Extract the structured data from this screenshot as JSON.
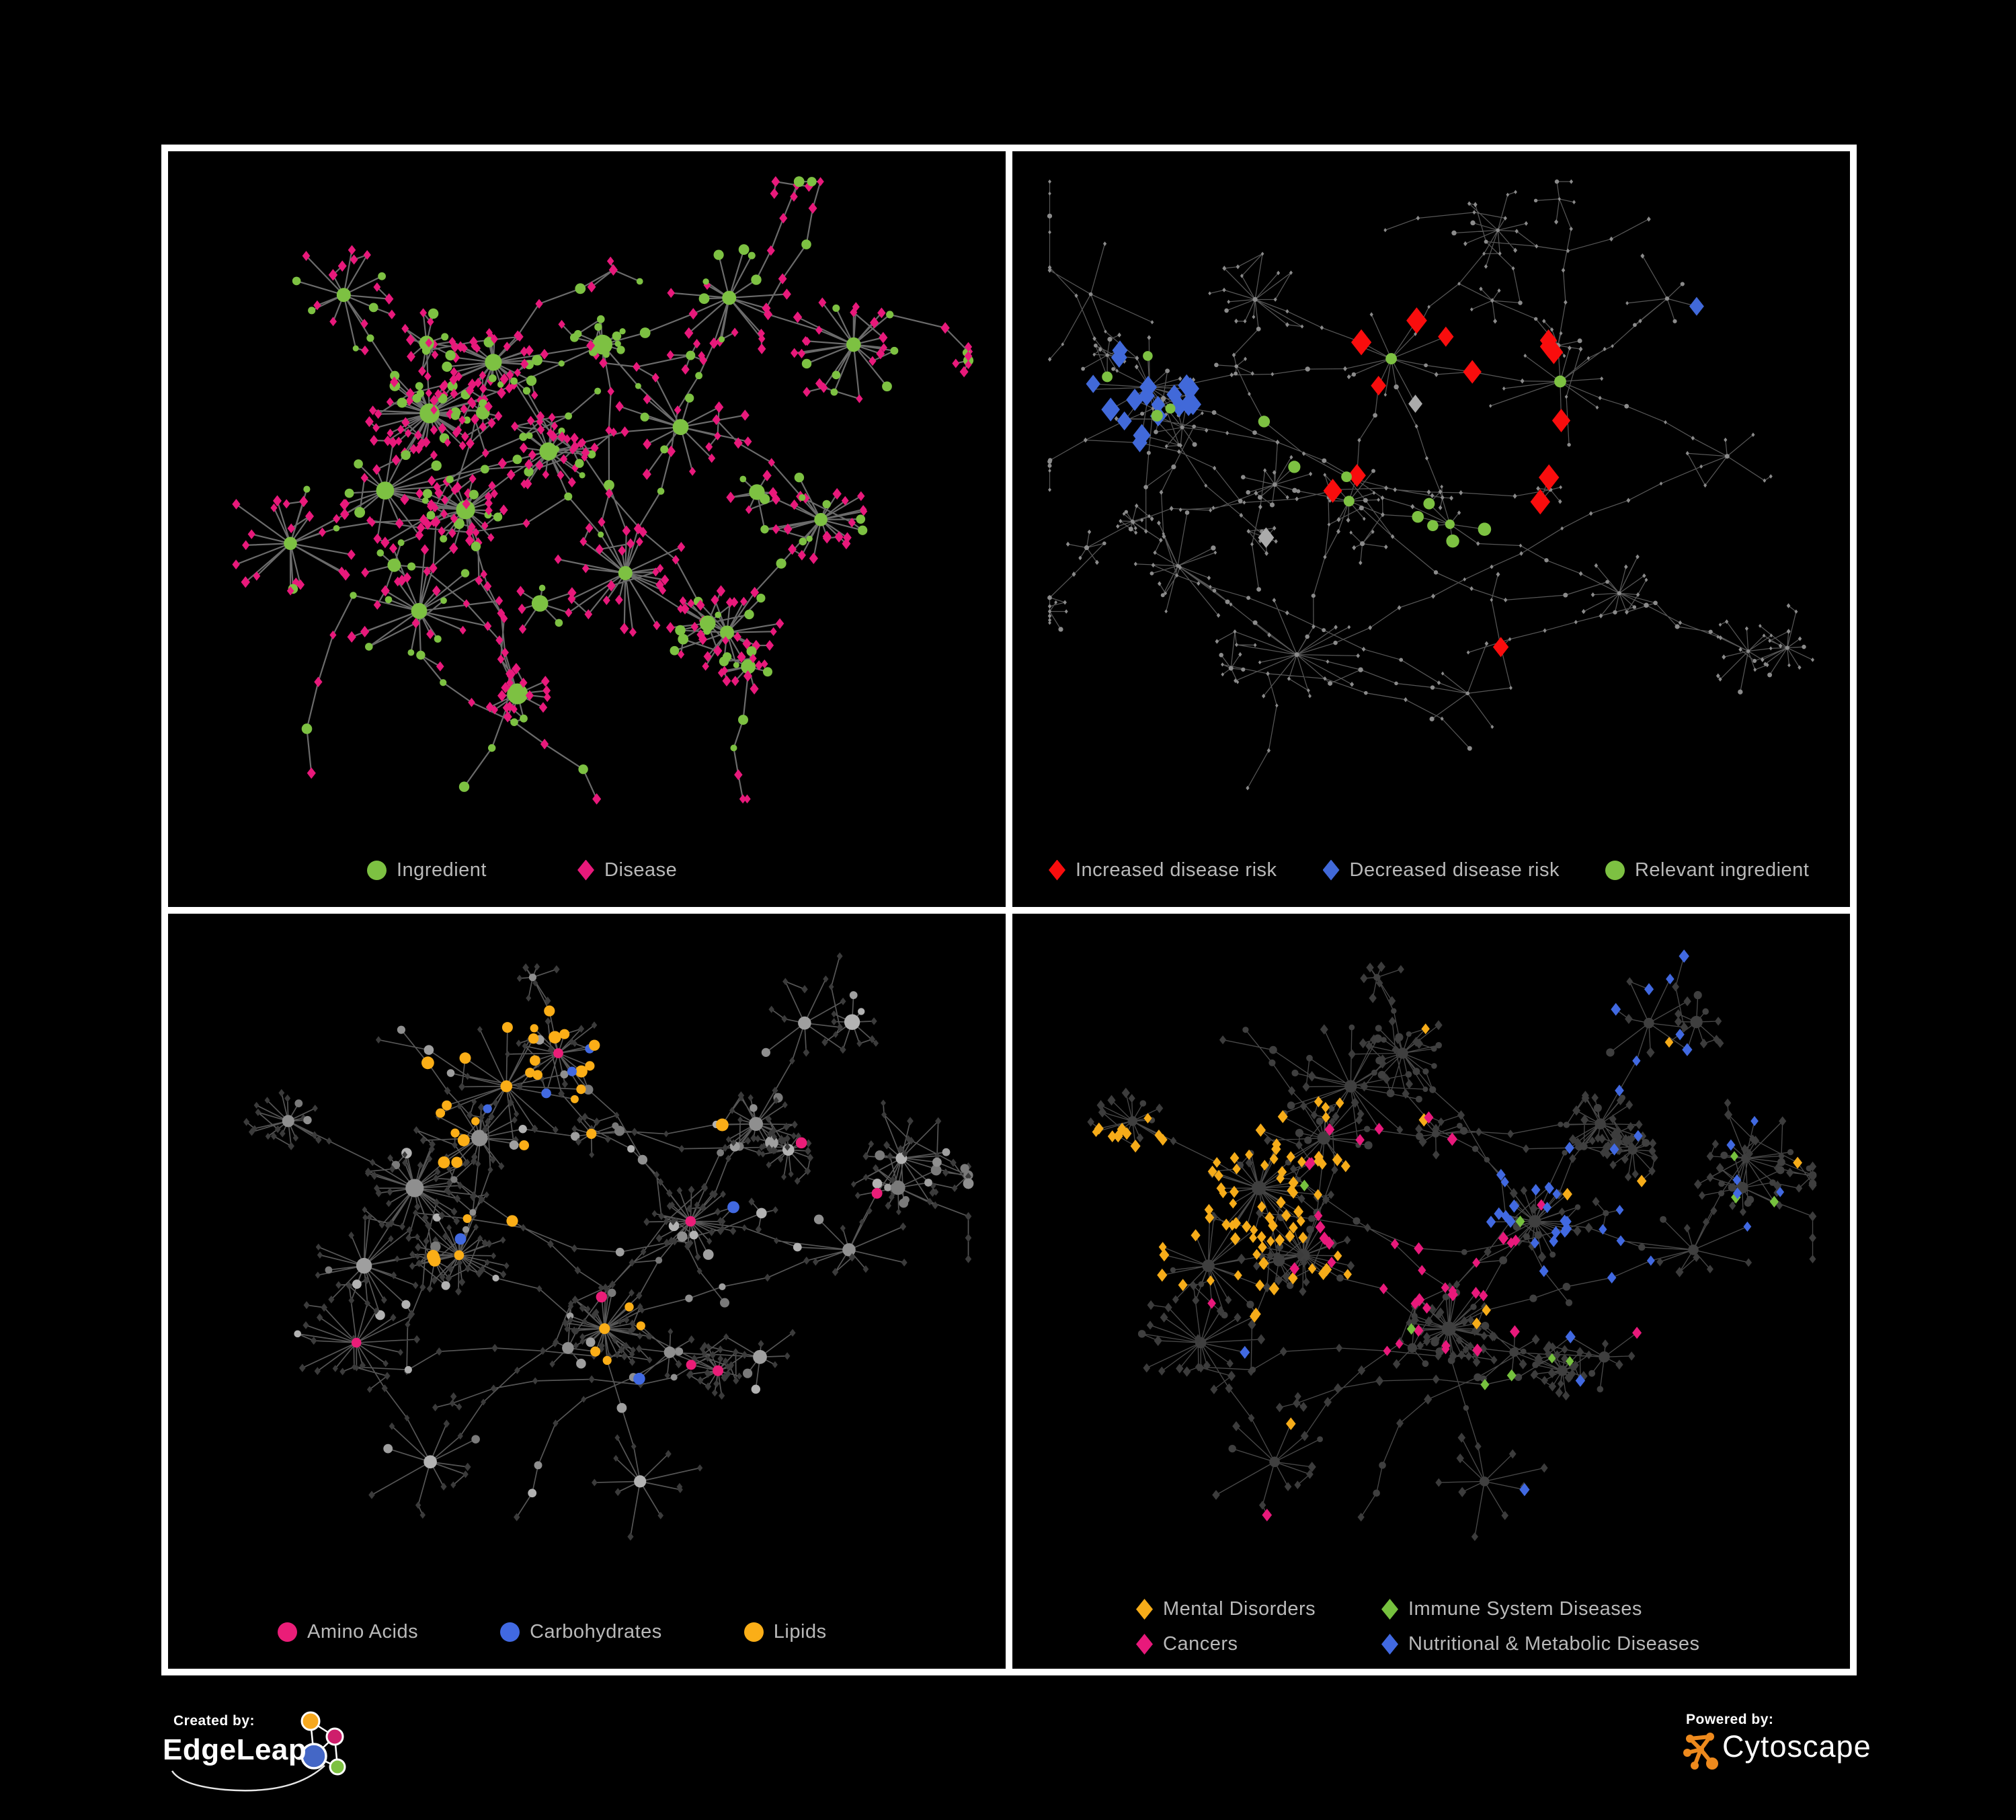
{
  "background": "#000000",
  "frame_color": "#ffffff",
  "legend_text_color": "#B9B9B9",
  "panels": [
    {
      "id": "ingredient-disease-network",
      "legend": [
        {
          "label": "Ingredient",
          "shape": "ellipse",
          "color": "#7DC142"
        },
        {
          "label": "Disease",
          "shape": "diamond",
          "color": "#E8197B"
        }
      ]
    },
    {
      "id": "disease-risk-network",
      "legend": [
        {
          "label": "Increased disease risk",
          "shape": "diamond",
          "color": "#F90D0D"
        },
        {
          "label": "Decreased disease risk",
          "shape": "diamond",
          "color": "#4169D9"
        },
        {
          "label": "Relevant ingredient",
          "shape": "ellipse",
          "color": "#7DC142"
        }
      ]
    },
    {
      "id": "nutrient-class-network",
      "legend": [
        {
          "label": "Amino Acids",
          "shape": "ellipse",
          "color": "#EA1D78"
        },
        {
          "label": "Carbohydrates",
          "shape": "ellipse",
          "color": "#4169E1"
        },
        {
          "label": "Lipids",
          "shape": "ellipse",
          "color": "#FBAE17"
        }
      ]
    },
    {
      "id": "disease-class-network",
      "legend": [
        {
          "label": "Mental Disorders",
          "shape": "diamond",
          "color": "#F6AC19"
        },
        {
          "label": "Immune System Diseases",
          "shape": "diamond",
          "color": "#76C13E"
        },
        {
          "label": "Cancers",
          "shape": "diamond",
          "color": "#E8197B"
        },
        {
          "label": "Nutritional & Metabolic Diseases",
          "shape": "diamond",
          "color": "#4169E1"
        }
      ]
    }
  ],
  "footer": {
    "created_by": "Created by:",
    "created_brand": "EdgeLeap",
    "powered_by": "Powered by:",
    "powered_brand": "Cytoscape"
  },
  "chart_data": [
    {
      "type": "network",
      "panel": "top-left",
      "description": "Ingredient-disease association network on black background",
      "node_categories": [
        {
          "name": "Ingredient",
          "shape": "ellipse",
          "color": "#7DC142",
          "approx_count": 185
        },
        {
          "name": "Disease",
          "shape": "diamond",
          "color": "#E8197B",
          "approx_count": 520
        }
      ],
      "edge_color": "#7E7E7E",
      "edge_width": 2.2,
      "edge_opacity": 0.85,
      "layout": "organic"
    },
    {
      "type": "network",
      "panel": "top-right",
      "description": "Same network, nodes dimmed; disease-risk findings highlighted",
      "node_categories": [
        {
          "name": "Increased disease risk",
          "shape": "diamond",
          "color": "#F90D0D",
          "approx_count": 34
        },
        {
          "name": "Decreased disease risk",
          "shape": "diamond",
          "color": "#4169D9",
          "approx_count": 11
        },
        {
          "name": "Silver / unclassified finding",
          "shape": "diamond",
          "color": "#ABABAB",
          "approx_count": 9
        },
        {
          "name": "Relevant ingredient",
          "shape": "ellipse",
          "color": "#7DC142",
          "approx_count": 40
        },
        {
          "name": "Other node",
          "shape": "dot",
          "color": "#8B8B8B",
          "approx_count": 620
        }
      ],
      "edge_color": "#6C6C6C",
      "edge_width": 1.25,
      "edge_opacity": 0.8,
      "other_node_color": "#8B8B8B",
      "layout": "organic"
    },
    {
      "type": "network",
      "panel": "bottom-left",
      "description": "Network colored by nutrient class of ingredient nodes",
      "node_categories": [
        {
          "name": "Amino Acids",
          "shape": "ellipse",
          "color": "#EA1D78",
          "approx_count": 22
        },
        {
          "name": "Carbohydrates",
          "shape": "ellipse",
          "color": "#4169E1",
          "approx_count": 14
        },
        {
          "name": "Lipids",
          "shape": "ellipse",
          "color": "#FBAE17",
          "approx_count": 70
        },
        {
          "name": "Other ingredient",
          "shape": "ellipse",
          "color": "#9A9A9A",
          "approx_count": 140
        },
        {
          "name": "Disease",
          "shape": "diamond",
          "color": "#3B3B3B",
          "approx_count": 490
        }
      ],
      "edge_color": "#909090",
      "edge_width": 1.7,
      "edge_opacity": 0.6,
      "ingredient_node_colors": [
        "#9F9F9F",
        "#8F8F8F",
        "#B2B2B2",
        "#7A7A7A"
      ],
      "disease_node_color": "#3B3B3B",
      "layout": "organic"
    },
    {
      "type": "network",
      "panel": "bottom-right",
      "description": "Network colored by disease class of disease nodes",
      "node_categories": [
        {
          "name": "Mental Disorders",
          "shape": "diamond",
          "color": "#F6AC19",
          "approx_count": 80
        },
        {
          "name": "Immune System Diseases",
          "shape": "diamond",
          "color": "#76C13E",
          "approx_count": 14
        },
        {
          "name": "Cancers",
          "shape": "diamond",
          "color": "#E8197B",
          "approx_count": 55
        },
        {
          "name": "Nutritional & Metabolic Diseases",
          "shape": "diamond",
          "color": "#4169E1",
          "approx_count": 75
        },
        {
          "name": "Other disease",
          "shape": "diamond",
          "color": "#3C3C3C",
          "approx_count": 480
        },
        {
          "name": "Ingredient (dimmed)",
          "shape": "ellipse",
          "color": "#3F3F3F",
          "approx_count": 185
        }
      ],
      "edge_color": "#666666",
      "edge_width": 1.35,
      "edge_opacity": 0.7,
      "other_node_color": "#3C3C3C",
      "circle_node_color": "#3F3F3F",
      "layout": "organic"
    }
  ]
}
